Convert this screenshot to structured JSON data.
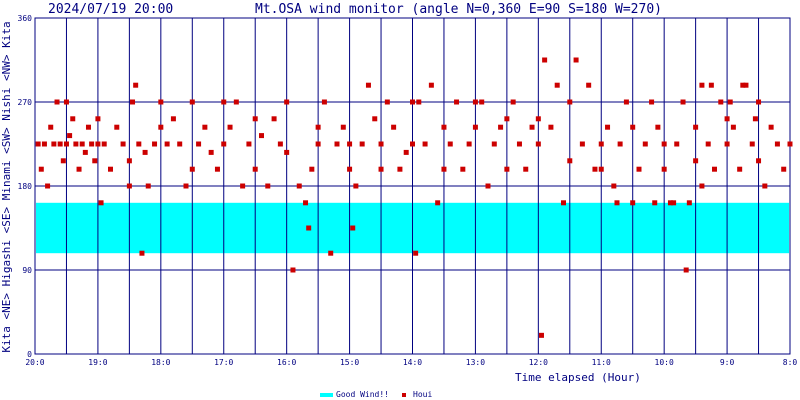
{
  "header": {
    "timestamp": "2024/07/19 20:00",
    "title": "Mt.OSA wind monitor (angle N=0,360 E=90 S=180 W=270)"
  },
  "legend": {
    "good_wind_label": "Good Wind!!",
    "houi_label": "Houi",
    "good_wind_color": "#00ffff",
    "houi_color": "#cc0000"
  },
  "colors": {
    "grid": "#000080",
    "text": "#000080",
    "band": "#00ffff",
    "point": "#cc0000"
  },
  "chart_data": {
    "type": "scatter",
    "xlabel": "Time elapsed (Hour)",
    "x_ticks": [
      "20:0",
      "19:0",
      "18:0",
      "17:0",
      "16:0",
      "15:0",
      "14:0",
      "13:0",
      "12:0",
      "11:0",
      "10:0",
      "9:0",
      "8:0"
    ],
    "xlim_hours_before_start": [
      0,
      12
    ],
    "ylim": [
      0,
      360
    ],
    "y_ticks": [
      0,
      90,
      180,
      270,
      360
    ],
    "y_side_labels": [
      "Kita",
      "<NE>",
      "Higashi",
      "<SE>",
      "Minami",
      "<SW>",
      "Nishi",
      "<NW>",
      "Kita"
    ],
    "good_wind_range": [
      108,
      162
    ],
    "series": [
      {
        "name": "Houi",
        "points": [
          [
            0.05,
            225
          ],
          [
            0.1,
            198
          ],
          [
            0.15,
            225
          ],
          [
            0.2,
            180
          ],
          [
            0.25,
            243
          ],
          [
            0.3,
            225
          ],
          [
            0.35,
            270
          ],
          [
            0.4,
            225
          ],
          [
            0.45,
            207
          ],
          [
            0.5,
            225
          ],
          [
            0.55,
            234
          ],
          [
            0.6,
            252
          ],
          [
            0.65,
            225
          ],
          [
            0.7,
            198
          ],
          [
            0.75,
            225
          ],
          [
            0.8,
            216
          ],
          [
            0.85,
            243
          ],
          [
            0.9,
            225
          ],
          [
            0.95,
            207
          ],
          [
            1.0,
            225
          ],
          [
            1.05,
            162
          ],
          [
            1.1,
            225
          ],
          [
            1.2,
            198
          ],
          [
            1.3,
            243
          ],
          [
            1.4,
            225
          ],
          [
            1.5,
            180
          ],
          [
            1.55,
            270
          ],
          [
            1.6,
            288
          ],
          [
            1.65,
            225
          ],
          [
            1.7,
            108
          ],
          [
            1.75,
            216
          ],
          [
            1.8,
            180
          ],
          [
            1.9,
            225
          ],
          [
            2.0,
            243
          ],
          [
            2.1,
            225
          ],
          [
            2.2,
            252
          ],
          [
            2.3,
            225
          ],
          [
            2.4,
            180
          ],
          [
            2.5,
            270
          ],
          [
            2.6,
            225
          ],
          [
            2.7,
            243
          ],
          [
            2.8,
            216
          ],
          [
            2.9,
            198
          ],
          [
            3.0,
            225
          ],
          [
            3.1,
            243
          ],
          [
            3.2,
            270
          ],
          [
            3.3,
            180
          ],
          [
            3.4,
            225
          ],
          [
            3.5,
            198
          ],
          [
            3.6,
            234
          ],
          [
            3.7,
            180
          ],
          [
            3.8,
            252
          ],
          [
            3.9,
            225
          ],
          [
            4.0,
            216
          ],
          [
            4.1,
            90
          ],
          [
            4.2,
            180
          ],
          [
            4.3,
            162
          ],
          [
            4.35,
            135
          ],
          [
            4.4,
            198
          ],
          [
            4.5,
            225
          ],
          [
            4.6,
            270
          ],
          [
            4.7,
            108
          ],
          [
            4.8,
            225
          ],
          [
            4.9,
            243
          ],
          [
            5.0,
            225
          ],
          [
            5.05,
            135
          ],
          [
            5.1,
            180
          ],
          [
            5.2,
            225
          ],
          [
            5.3,
            288
          ],
          [
            5.4,
            252
          ],
          [
            5.5,
            225
          ],
          [
            5.6,
            270
          ],
          [
            5.7,
            243
          ],
          [
            5.8,
            198
          ],
          [
            5.9,
            216
          ],
          [
            6.0,
            225
          ],
          [
            6.05,
            108
          ],
          [
            6.1,
            270
          ],
          [
            6.2,
            225
          ],
          [
            6.3,
            288
          ],
          [
            6.4,
            162
          ],
          [
            6.5,
            243
          ],
          [
            6.6,
            225
          ],
          [
            6.7,
            270
          ],
          [
            6.8,
            198
          ],
          [
            6.9,
            225
          ],
          [
            7.0,
            243
          ],
          [
            7.1,
            270
          ],
          [
            7.2,
            180
          ],
          [
            7.3,
            225
          ],
          [
            7.4,
            243
          ],
          [
            7.5,
            252
          ],
          [
            7.6,
            270
          ],
          [
            7.7,
            225
          ],
          [
            7.8,
            198
          ],
          [
            7.9,
            243
          ],
          [
            8.0,
            225
          ],
          [
            8.05,
            20
          ],
          [
            8.1,
            315
          ],
          [
            8.2,
            243
          ],
          [
            8.3,
            288
          ],
          [
            8.4,
            162
          ],
          [
            8.5,
            270
          ],
          [
            8.6,
            315
          ],
          [
            8.7,
            225
          ],
          [
            8.8,
            288
          ],
          [
            8.9,
            198
          ],
          [
            9.0,
            225
          ],
          [
            9.1,
            243
          ],
          [
            9.2,
            180
          ],
          [
            9.3,
            225
          ],
          [
            9.4,
            270
          ],
          [
            9.5,
            162
          ],
          [
            9.6,
            198
          ],
          [
            9.7,
            225
          ],
          [
            9.8,
            270
          ],
          [
            9.9,
            243
          ],
          [
            10.0,
            225
          ],
          [
            10.1,
            162
          ],
          [
            10.2,
            225
          ],
          [
            10.3,
            270
          ],
          [
            10.4,
            162
          ],
          [
            10.5,
            243
          ],
          [
            10.6,
            180
          ],
          [
            10.7,
            225
          ],
          [
            10.8,
            198
          ],
          [
            10.9,
            270
          ],
          [
            11.0,
            225
          ],
          [
            11.1,
            243
          ],
          [
            11.2,
            198
          ],
          [
            11.3,
            288
          ],
          [
            11.4,
            225
          ],
          [
            11.5,
            270
          ],
          [
            11.6,
            180
          ],
          [
            11.7,
            243
          ],
          [
            11.8,
            225
          ],
          [
            11.9,
            198
          ],
          [
            12.0,
            225
          ],
          [
            0.5,
            270
          ],
          [
            1.0,
            252
          ],
          [
            1.5,
            207
          ],
          [
            2.0,
            270
          ],
          [
            2.5,
            198
          ],
          [
            3.0,
            270
          ],
          [
            3.5,
            252
          ],
          [
            4.0,
            270
          ],
          [
            4.5,
            243
          ],
          [
            5.0,
            198
          ],
          [
            5.5,
            198
          ],
          [
            6.0,
            270
          ],
          [
            6.5,
            198
          ],
          [
            7.0,
            270
          ],
          [
            7.5,
            198
          ],
          [
            8.0,
            252
          ],
          [
            8.5,
            207
          ],
          [
            9.0,
            198
          ],
          [
            9.5,
            243
          ],
          [
            10.0,
            198
          ],
          [
            10.5,
            207
          ],
          [
            11.0,
            252
          ],
          [
            11.5,
            207
          ],
          [
            9.25,
            162
          ],
          [
            9.85,
            162
          ],
          [
            10.15,
            162
          ],
          [
            10.35,
            90
          ],
          [
            10.6,
            288
          ],
          [
            10.75,
            288
          ],
          [
            11.05,
            270
          ],
          [
            11.25,
            288
          ],
          [
            11.45,
            252
          ]
        ]
      }
    ]
  }
}
